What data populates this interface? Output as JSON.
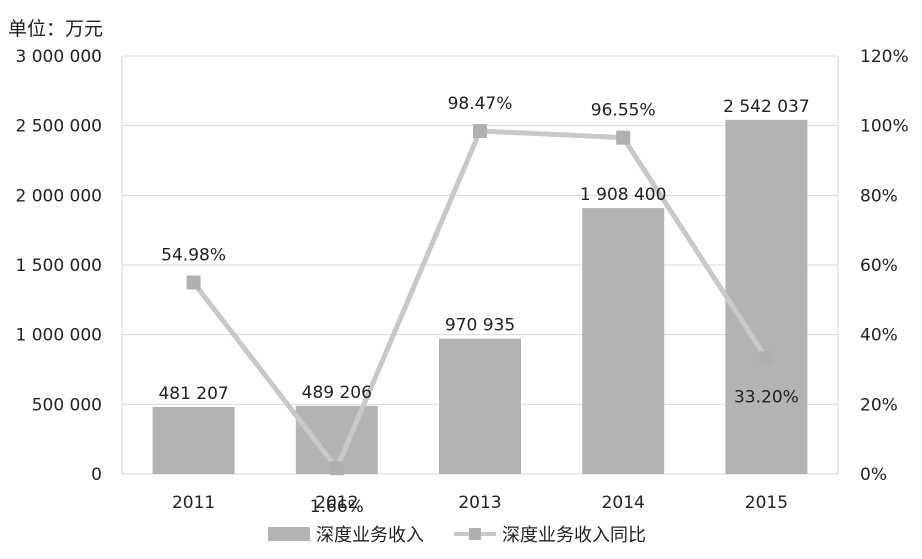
{
  "unit_label": "单位：万元",
  "chart_data": {
    "type": "bar",
    "categories": [
      "2011",
      "2012",
      "2013",
      "2014",
      "2015"
    ],
    "series": [
      {
        "name": "深度业务收入",
        "type": "bar",
        "axis": "left",
        "values": [
          481207,
          489206,
          970935,
          1908400,
          2542037
        ],
        "labels": [
          "481 207",
          "489 206",
          "970 935",
          "1 908 400",
          "2 542 037"
        ],
        "color": "#b3b3b3"
      },
      {
        "name": "深度业务收入同比",
        "type": "line",
        "axis": "right",
        "values": [
          54.98,
          1.66,
          98.47,
          96.55,
          33.2
        ],
        "labels": [
          "54.98%",
          "1.66%",
          "98.47%",
          "96.55%",
          "33.20%"
        ],
        "color": "#c8c8c8",
        "marker_color": "#b0b0b0"
      }
    ],
    "ylim_left": [
      0,
      3000000
    ],
    "ylim_right": [
      0,
      120
    ],
    "left_ticks": [
      {
        "value": 0,
        "label": "0"
      },
      {
        "value": 500000,
        "label": "500 000"
      },
      {
        "value": 1000000,
        "label": "1 000 000"
      },
      {
        "value": 1500000,
        "label": "1 500 000"
      },
      {
        "value": 2000000,
        "label": "2 000 000"
      },
      {
        "value": 2500000,
        "label": "2 500 000"
      },
      {
        "value": 3000000,
        "label": "3 000 000"
      }
    ],
    "right_ticks": [
      {
        "value": 0,
        "label": "0%"
      },
      {
        "value": 20,
        "label": "20%"
      },
      {
        "value": 40,
        "label": "40%"
      },
      {
        "value": 60,
        "label": "60%"
      },
      {
        "value": 80,
        "label": "80%"
      },
      {
        "value": 100,
        "label": "100%"
      },
      {
        "value": 120,
        "label": "120%"
      }
    ],
    "grid": true,
    "legend": "bottom"
  }
}
